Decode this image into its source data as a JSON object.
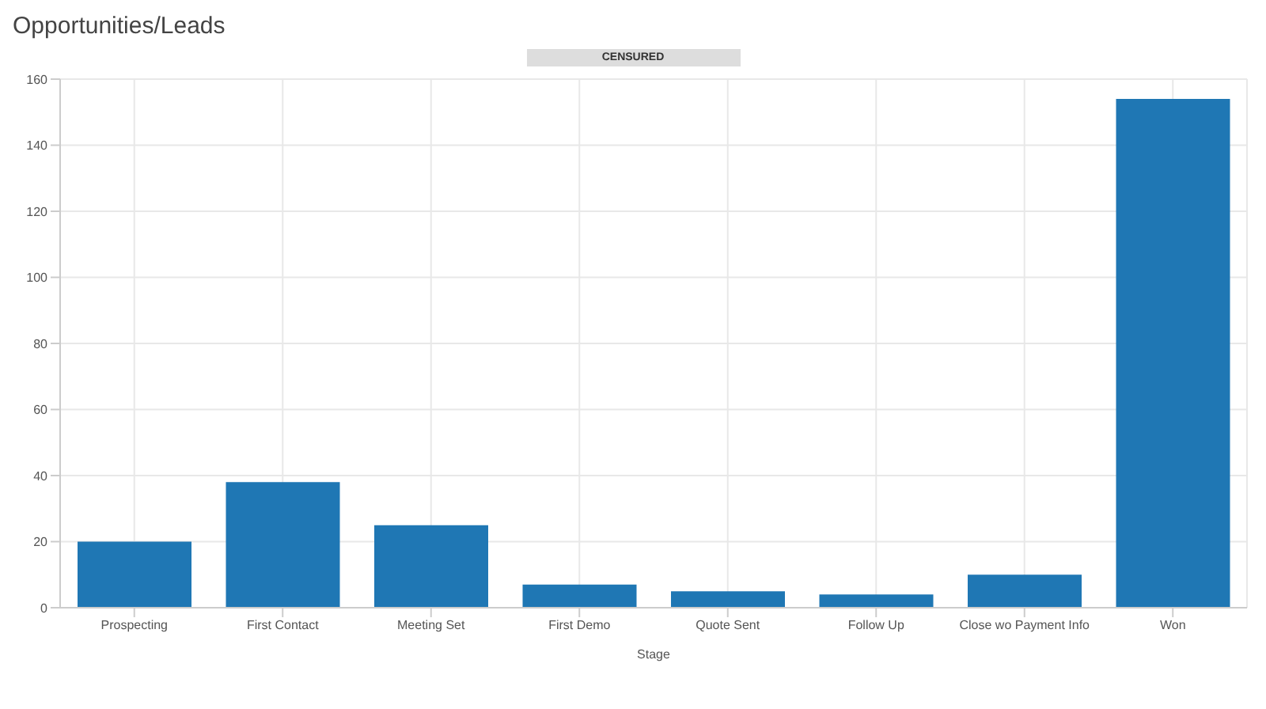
{
  "chart_data": {
    "type": "bar",
    "title": "Opportunities/Leads",
    "xlabel": "Stage",
    "annotations": [
      "CENSURED"
    ],
    "categories": [
      "Prospecting",
      "First Contact",
      "Meeting Set",
      "First Demo",
      "Quote Sent",
      "Follow Up",
      "Close wo Payment Info",
      "Won"
    ],
    "values": [
      20,
      38,
      25,
      7,
      5,
      4,
      10,
      154
    ],
    "color": "#1f77b4",
    "ylim": [
      0,
      160
    ],
    "yticks": [
      0,
      20,
      40,
      60,
      80,
      100,
      120,
      140,
      160
    ],
    "grid": true
  }
}
